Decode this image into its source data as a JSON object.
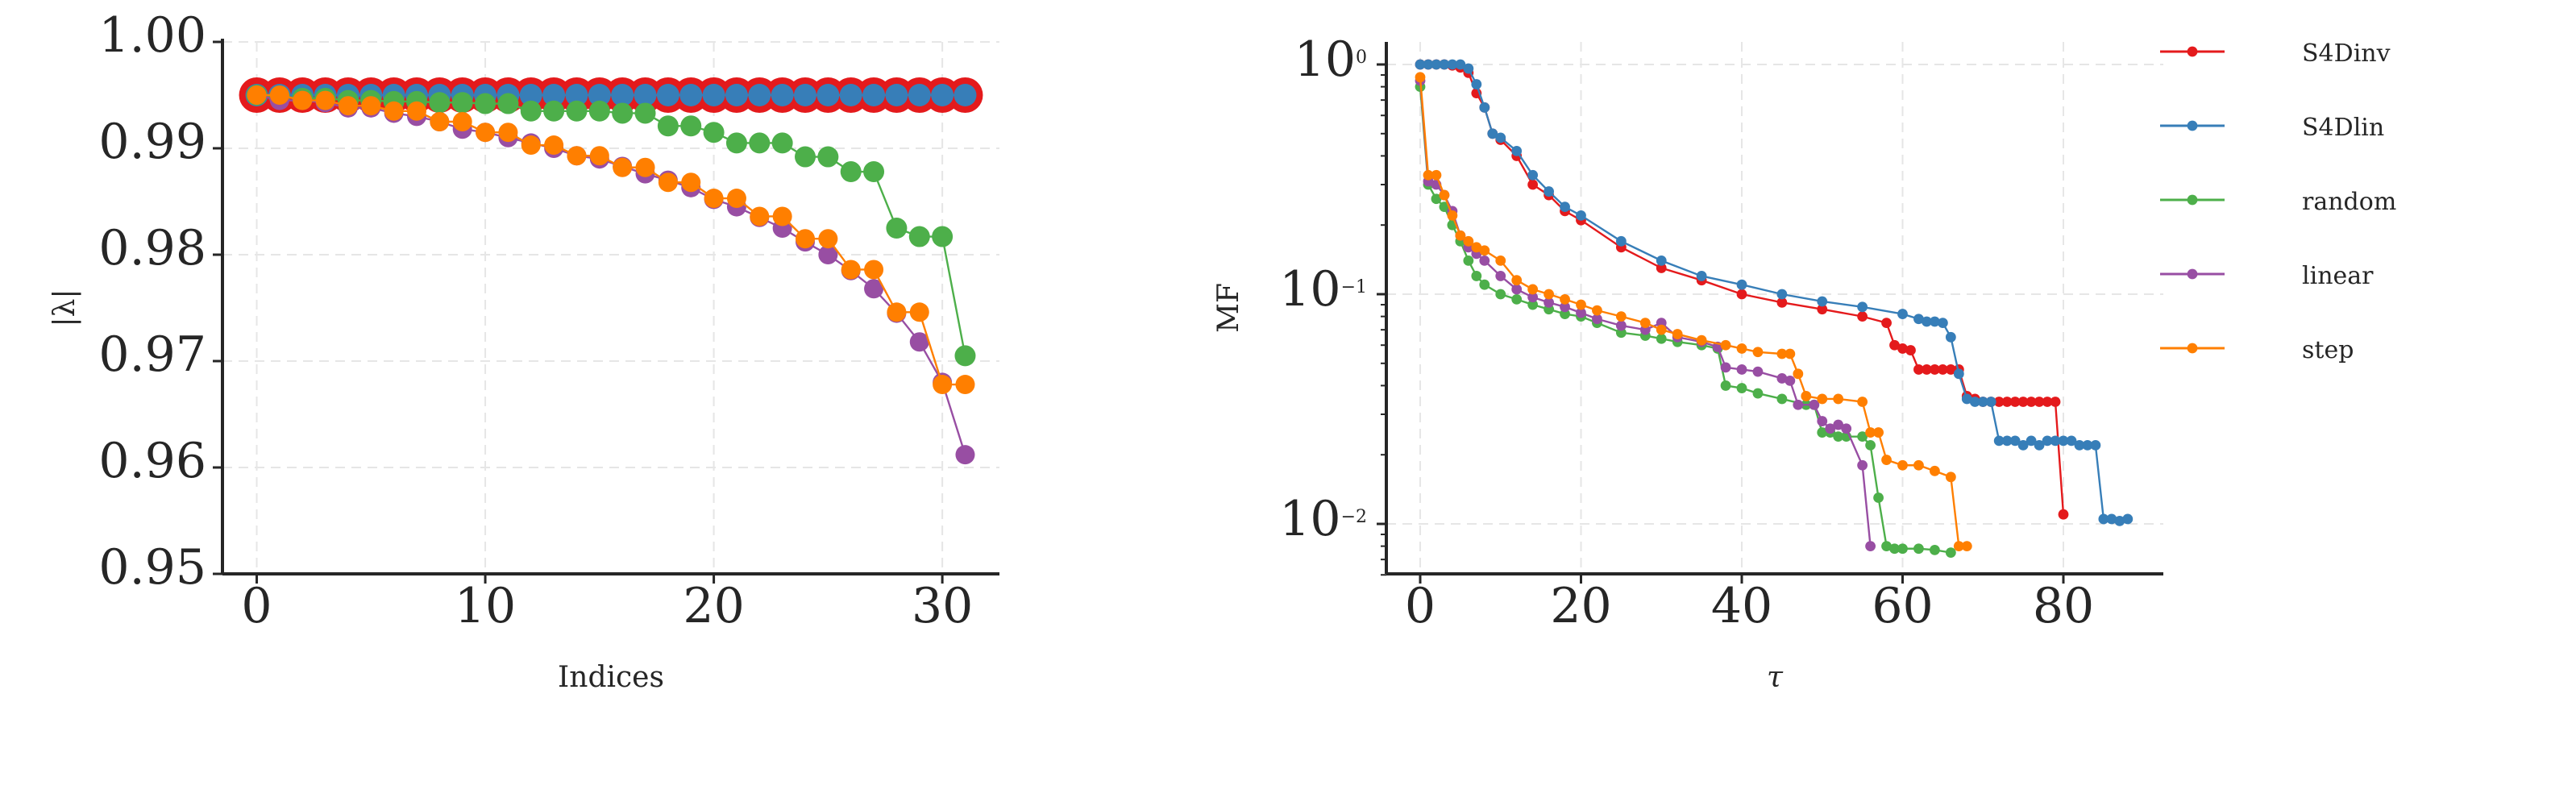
{
  "colors": {
    "S4Dinv": "#e41a1c",
    "S4Dlin": "#377eb8",
    "random": "#4daf4a",
    "linear": "#984ea3",
    "step": "#ff7f00"
  },
  "chart_data": [
    {
      "type": "line",
      "title": "",
      "xlabel": "Indices",
      "ylabel": "|λ|",
      "xlim": [
        -1.5,
        32.5
      ],
      "ylim": [
        0.95,
        1.0
      ],
      "xticks": [
        0,
        10,
        20,
        30
      ],
      "xtick_labels": [
        "0",
        "10",
        "20",
        "30"
      ],
      "yticks": [
        0.95,
        0.96,
        0.97,
        0.98,
        0.99,
        1.0
      ],
      "ytick_labels": [
        "0.95",
        "0.96",
        "0.97",
        "0.98",
        "0.99",
        "1.00"
      ],
      "grid": true,
      "x": [
        0,
        1,
        2,
        3,
        4,
        5,
        6,
        7,
        8,
        9,
        10,
        11,
        12,
        13,
        14,
        15,
        16,
        17,
        18,
        19,
        20,
        21,
        22,
        23,
        24,
        25,
        26,
        27,
        28,
        29,
        30,
        31
      ],
      "series": [
        {
          "name": "S4Dinv",
          "values": [
            0.995,
            0.995,
            0.995,
            0.995,
            0.995,
            0.995,
            0.995,
            0.995,
            0.995,
            0.995,
            0.995,
            0.995,
            0.995,
            0.995,
            0.995,
            0.995,
            0.995,
            0.995,
            0.995,
            0.995,
            0.995,
            0.995,
            0.995,
            0.995,
            0.995,
            0.995,
            0.995,
            0.995,
            0.995,
            0.995,
            0.995,
            0.995
          ]
        },
        {
          "name": "S4Dlin",
          "values": [
            0.995,
            0.995,
            0.995,
            0.995,
            0.995,
            0.995,
            0.995,
            0.995,
            0.995,
            0.995,
            0.995,
            0.995,
            0.995,
            0.995,
            0.995,
            0.995,
            0.995,
            0.995,
            0.995,
            0.995,
            0.995,
            0.995,
            0.995,
            0.995,
            0.995,
            0.995,
            0.995,
            0.995,
            0.995,
            0.995,
            0.995,
            0.995
          ]
        },
        {
          "name": "random",
          "values": [
            0.995,
            0.9948,
            0.9947,
            0.9947,
            0.9945,
            0.9945,
            0.9944,
            0.9944,
            0.9943,
            0.9943,
            0.9942,
            0.9942,
            0.9935,
            0.9935,
            0.9935,
            0.9935,
            0.9933,
            0.9933,
            0.9921,
            0.9921,
            0.9915,
            0.9905,
            0.9905,
            0.9905,
            0.9892,
            0.9892,
            0.9878,
            0.9878,
            0.9825,
            0.9817,
            0.9817,
            0.9705
          ]
        },
        {
          "name": "linear",
          "values": [
            0.995,
            0.9945,
            0.9945,
            0.9943,
            0.9938,
            0.9938,
            0.9933,
            0.993,
            0.9925,
            0.9918,
            0.9915,
            0.991,
            0.9905,
            0.99,
            0.9893,
            0.989,
            0.9883,
            0.9876,
            0.987,
            0.9863,
            0.9852,
            0.9845,
            0.9835,
            0.9825,
            0.9812,
            0.98,
            0.9785,
            0.9768,
            0.9745,
            0.9718,
            0.968,
            0.9612
          ]
        },
        {
          "name": "step",
          "values": [
            0.995,
            0.995,
            0.9945,
            0.9945,
            0.994,
            0.994,
            0.9935,
            0.9935,
            0.9925,
            0.9925,
            0.9915,
            0.9915,
            0.9903,
            0.9903,
            0.9893,
            0.9893,
            0.9882,
            0.9882,
            0.9868,
            0.9868,
            0.9853,
            0.9853,
            0.9836,
            0.9836,
            0.9815,
            0.9815,
            0.9786,
            0.9786,
            0.9746,
            0.9746,
            0.9678,
            0.9678
          ]
        }
      ]
    },
    {
      "type": "line",
      "title": "",
      "xlabel": "τ",
      "ylabel": "MF",
      "yscale": "log",
      "xlim": [
        -4,
        92
      ],
      "ylim": [
        0.006,
        1.3
      ],
      "xticks": [
        0,
        20,
        40,
        60,
        80
      ],
      "xtick_labels": [
        "0",
        "20",
        "40",
        "60",
        "80"
      ],
      "yticks": [
        1,
        0.1,
        0.01
      ],
      "ytick_labels": [
        "10^0",
        "10^-1",
        "10^-2"
      ],
      "grid": true,
      "legend": {
        "position": "outside-right",
        "entries": [
          "S4Dinv",
          "S4Dlin",
          "random",
          "linear",
          "step"
        ]
      },
      "series": [
        {
          "name": "S4Dinv",
          "x": [
            0,
            1,
            2,
            3,
            4,
            5,
            6,
            7,
            8,
            9,
            10,
            12,
            14,
            16,
            18,
            20,
            25,
            30,
            35,
            40,
            45,
            50,
            55,
            58,
            59,
            60,
            61,
            62,
            63,
            64,
            65,
            66,
            67,
            68,
            69,
            70,
            71,
            72,
            73,
            74,
            75,
            76,
            77,
            78,
            79,
            80
          ],
          "values": [
            1.0,
            1.0,
            1.0,
            1.0,
            0.99,
            0.97,
            0.92,
            0.75,
            0.65,
            0.5,
            0.47,
            0.4,
            0.3,
            0.27,
            0.23,
            0.21,
            0.16,
            0.13,
            0.115,
            0.1,
            0.092,
            0.086,
            0.08,
            0.075,
            0.06,
            0.058,
            0.057,
            0.047,
            0.047,
            0.047,
            0.047,
            0.047,
            0.047,
            0.036,
            0.035,
            0.034,
            0.034,
            0.034,
            0.034,
            0.034,
            0.034,
            0.034,
            0.034,
            0.034,
            0.034,
            0.011
          ]
        },
        {
          "name": "S4Dlin",
          "x": [
            0,
            1,
            2,
            3,
            4,
            5,
            6,
            7,
            8,
            9,
            10,
            12,
            14,
            16,
            18,
            20,
            25,
            30,
            35,
            40,
            45,
            50,
            55,
            60,
            62,
            63,
            64,
            65,
            66,
            67,
            68,
            69,
            70,
            71,
            72,
            73,
            74,
            75,
            76,
            77,
            78,
            79,
            80,
            81,
            82,
            83,
            84,
            85,
            86,
            87,
            88
          ],
          "values": [
            1.0,
            1.0,
            1.0,
            1.0,
            1.0,
            1.0,
            0.96,
            0.82,
            0.65,
            0.5,
            0.48,
            0.42,
            0.33,
            0.28,
            0.24,
            0.22,
            0.17,
            0.14,
            0.12,
            0.11,
            0.1,
            0.093,
            0.088,
            0.082,
            0.078,
            0.076,
            0.076,
            0.075,
            0.065,
            0.045,
            0.035,
            0.034,
            0.034,
            0.034,
            0.023,
            0.023,
            0.023,
            0.022,
            0.023,
            0.022,
            0.023,
            0.023,
            0.023,
            0.023,
            0.022,
            0.022,
            0.022,
            0.0105,
            0.0105,
            0.0103,
            0.0105
          ]
        },
        {
          "name": "random",
          "x": [
            0,
            1,
            2,
            3,
            4,
            5,
            6,
            7,
            8,
            10,
            12,
            14,
            16,
            18,
            20,
            22,
            25,
            28,
            30,
            32,
            35,
            37,
            38,
            40,
            42,
            45,
            48,
            49,
            50,
            51,
            52,
            53,
            55,
            56,
            57,
            58,
            59,
            60,
            62,
            64,
            66
          ],
          "values": [
            0.8,
            0.3,
            0.26,
            0.24,
            0.2,
            0.17,
            0.14,
            0.12,
            0.11,
            0.1,
            0.095,
            0.09,
            0.086,
            0.082,
            0.08,
            0.075,
            0.068,
            0.066,
            0.064,
            0.062,
            0.06,
            0.058,
            0.04,
            0.039,
            0.037,
            0.035,
            0.033,
            0.033,
            0.025,
            0.025,
            0.024,
            0.024,
            0.024,
            0.022,
            0.013,
            0.008,
            0.0078,
            0.0078,
            0.0078,
            0.0077,
            0.0075
          ]
        },
        {
          "name": "linear",
          "x": [
            0,
            1,
            2,
            3,
            4,
            5,
            6,
            7,
            8,
            10,
            12,
            14,
            16,
            18,
            20,
            22,
            25,
            28,
            30,
            32,
            35,
            37,
            38,
            40,
            42,
            45,
            46,
            47,
            49,
            50,
            51,
            52,
            53,
            55,
            56
          ],
          "values": [
            0.85,
            0.31,
            0.3,
            0.27,
            0.23,
            0.18,
            0.16,
            0.15,
            0.14,
            0.12,
            0.105,
            0.097,
            0.092,
            0.088,
            0.083,
            0.078,
            0.073,
            0.07,
            0.075,
            0.065,
            0.062,
            0.059,
            0.048,
            0.047,
            0.046,
            0.043,
            0.042,
            0.033,
            0.033,
            0.028,
            0.026,
            0.027,
            0.026,
            0.018,
            0.008
          ]
        },
        {
          "name": "step",
          "x": [
            0,
            1,
            2,
            3,
            4,
            5,
            6,
            7,
            8,
            10,
            12,
            14,
            16,
            18,
            20,
            22,
            25,
            28,
            30,
            32,
            35,
            38,
            40,
            42,
            45,
            46,
            47,
            48,
            50,
            52,
            55,
            56,
            57,
            58,
            60,
            62,
            64,
            66,
            67,
            68
          ],
          "values": [
            0.88,
            0.33,
            0.33,
            0.27,
            0.22,
            0.18,
            0.17,
            0.16,
            0.155,
            0.14,
            0.115,
            0.105,
            0.1,
            0.095,
            0.09,
            0.085,
            0.08,
            0.075,
            0.07,
            0.067,
            0.063,
            0.06,
            0.058,
            0.056,
            0.055,
            0.055,
            0.045,
            0.036,
            0.035,
            0.035,
            0.034,
            0.025,
            0.025,
            0.019,
            0.018,
            0.018,
            0.017,
            0.016,
            0.008,
            0.008
          ]
        }
      ]
    }
  ]
}
